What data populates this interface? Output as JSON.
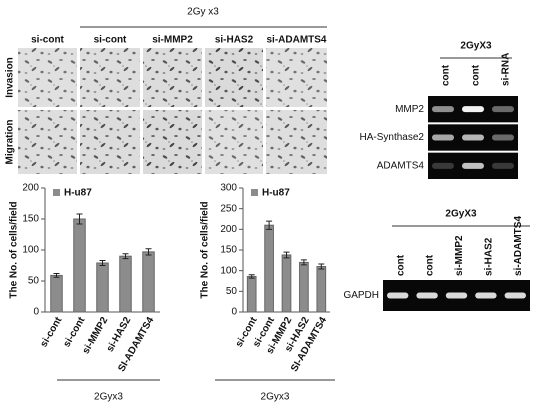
{
  "chart_data": [
    {
      "type": "bar",
      "categories": [
        "si-cont",
        "si-cont",
        "si-MMP2",
        "si-HAS2",
        "SI-ADAMTS4"
      ],
      "series": [
        {
          "name": "H-u87",
          "color": "#8c8c8c",
          "values": [
            59,
            150,
            79,
            90,
            97
          ],
          "errors": [
            3,
            8,
            4,
            4,
            5
          ]
        }
      ],
      "y_label": "The No. of cells/field",
      "x_group_label": "2Gyx3",
      "ylim": [
        0,
        200
      ],
      "yticks": [
        0,
        50,
        100,
        150,
        200
      ]
    },
    {
      "type": "bar",
      "categories": [
        "si-cont",
        "si-cont",
        "si-MMP2",
        "si-HAS2",
        "SI-ADAMTS4"
      ],
      "series": [
        {
          "name": "H-u87",
          "color": "#8c8c8c",
          "values": [
            86,
            210,
            138,
            120,
            110
          ],
          "errors": [
            4,
            10,
            7,
            6,
            6
          ]
        }
      ],
      "y_label": "The No. of  cells/field",
      "x_group_label": "2Gyx3",
      "ylim": [
        0,
        300
      ],
      "yticks": [
        0,
        50,
        100,
        150,
        200,
        250,
        300
      ]
    }
  ],
  "micrographs": {
    "group_label": "2Gy x3",
    "columns": [
      "si-cont",
      "si-cont",
      "si-MMP2",
      "si-HAS2",
      "si-ADAMTS4"
    ],
    "rows": [
      "Invasion",
      "Migration"
    ]
  },
  "gel_top": {
    "group_label": "2GyX3",
    "lanes": [
      "cont",
      "cont",
      "si-RNA"
    ],
    "rows": [
      "MMP2",
      "HA-Synthase2",
      "ADAMTS4"
    ]
  },
  "gel_bottom": {
    "group_label": "2GyX3",
    "lanes": [
      "cont",
      "cont",
      "si-MMP2",
      "si-HAS2",
      "si-ADAMTS4"
    ],
    "rows": [
      "GAPDH"
    ]
  }
}
